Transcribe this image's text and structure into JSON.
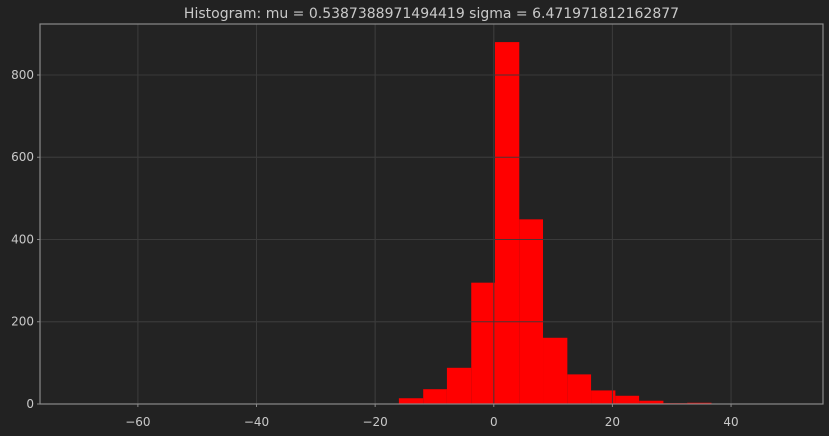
{
  "chart_data": {
    "type": "bar",
    "title": "Histogram: mu = 0.5387388971494419 sigma = 6.471971812162877",
    "xlabel": "",
    "ylabel": "",
    "xlim": [
      -76.5,
      55.5
    ],
    "ylim": [
      0,
      924
    ],
    "grid": true,
    "x_ticks": [
      -60,
      -40,
      -20,
      0,
      20,
      40
    ],
    "y_ticks": [
      0,
      200,
      400,
      600,
      800
    ],
    "bin_edges": [
      -72.7,
      -68.6,
      -64.6,
      -60.5,
      -56.5,
      -52.4,
      -48.4,
      -44.3,
      -40.3,
      -36.2,
      -32.2,
      -28.1,
      -24.1,
      -20.0,
      -16.0,
      -11.9,
      -7.9,
      -3.8,
      0.2,
      4.3,
      8.3,
      12.4,
      16.4,
      20.5,
      24.5,
      28.6,
      32.6,
      36.7,
      40.7,
      44.8,
      48.8,
      52.9
    ],
    "counts": [
      1,
      1,
      0,
      0,
      0,
      0,
      0,
      1,
      0,
      0,
      0,
      1,
      1,
      1,
      14,
      36,
      88,
      295,
      880,
      449,
      161,
      72,
      33,
      20,
      8,
      2,
      3,
      1,
      0,
      0,
      1
    ],
    "bar_color": "#ff0000"
  },
  "colors": {
    "background": "#222222",
    "plot_background": "#232323",
    "grid": "#3a3a3a",
    "spine": "#8a8a8a",
    "text": "#c9c9c9"
  }
}
